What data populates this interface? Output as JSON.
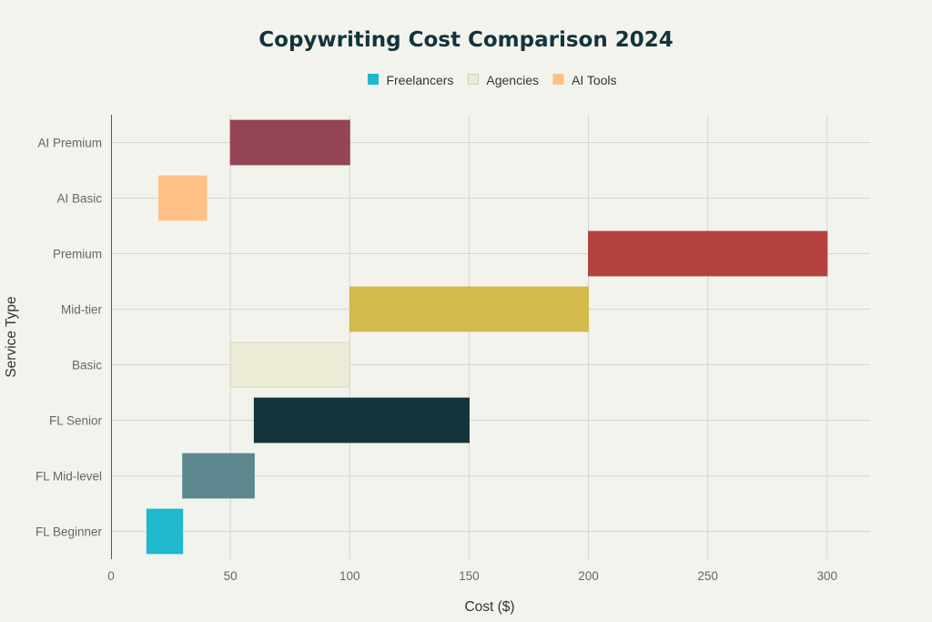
{
  "chart_data": {
    "type": "bar",
    "orientation": "horizontal",
    "title": "Copywriting Cost Comparison 2024",
    "xlabel": "Cost ($)",
    "ylabel": "Service Type",
    "xlim": [
      0,
      318
    ],
    "xticks": [
      0,
      50,
      100,
      150,
      200,
      250,
      300
    ],
    "grid": true,
    "legend_position": "top-center",
    "legend": [
      {
        "name": "Freelancers",
        "color": "#1fb8cd"
      },
      {
        "name": "Agencies",
        "color": "#ecebd5"
      },
      {
        "name": "AI Tools",
        "color": "#ffc185"
      }
    ],
    "categories": [
      "FL Beginner",
      "FL Mid-level",
      "FL Senior",
      "Basic",
      "Mid-tier",
      "Premium",
      "AI Basic",
      "AI Premium"
    ],
    "bars": [
      {
        "category": "FL Beginner",
        "min": 15,
        "max": 30,
        "color": "#1fb8cd"
      },
      {
        "category": "FL Mid-level",
        "min": 30,
        "max": 60,
        "color": "#5d878f"
      },
      {
        "category": "FL Senior",
        "min": 60,
        "max": 150,
        "color": "#13343b"
      },
      {
        "category": "Basic",
        "min": 50,
        "max": 100,
        "color": "#ecebd5"
      },
      {
        "category": "Mid-tier",
        "min": 100,
        "max": 200,
        "color": "#d2ba4c"
      },
      {
        "category": "Premium",
        "min": 200,
        "max": 300,
        "color": "#b4413c"
      },
      {
        "category": "AI Basic",
        "min": 20,
        "max": 40,
        "color": "#ffc185"
      },
      {
        "category": "AI Premium",
        "min": 50,
        "max": 100,
        "color": "#944454"
      }
    ]
  }
}
